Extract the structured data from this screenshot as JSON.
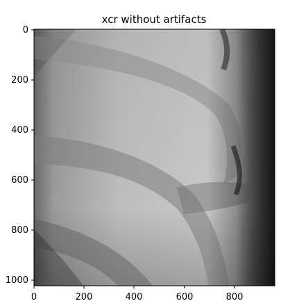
{
  "figure": {
    "title": "xcr without artifacts",
    "x_ticks": [
      "0",
      "200",
      "400",
      "600",
      "800"
    ],
    "y_ticks": [
      "0",
      "200",
      "400",
      "600",
      "800",
      "1000"
    ]
  },
  "image": {
    "description_tags": [
      "grayscale",
      "x-ray",
      "curved-bands"
    ],
    "extent": {
      "x": [
        0,
        960
      ],
      "y": [
        1025,
        0
      ]
    }
  }
}
